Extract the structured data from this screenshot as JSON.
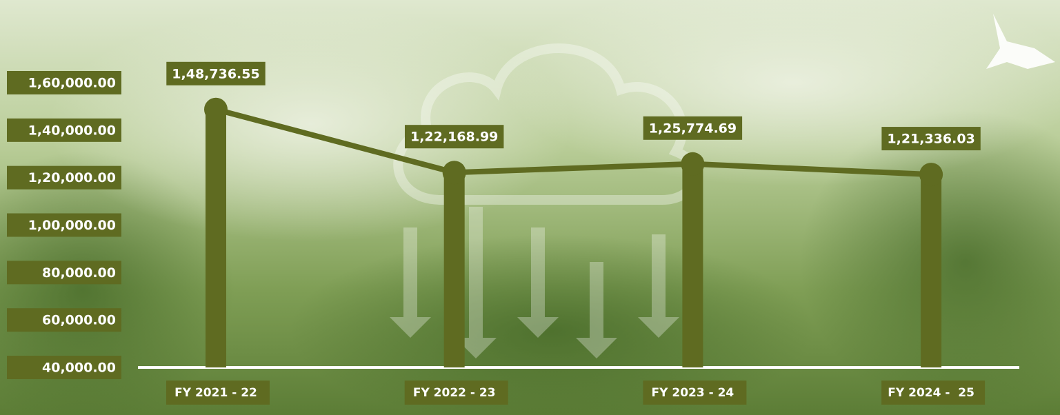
{
  "chart_data": {
    "type": "line",
    "categories": [
      "FY 2021 - 22",
      "FY 2022 - 23",
      "FY 2023 - 24",
      "FY 2024 -  25"
    ],
    "values": [
      148736.55,
      122168.99,
      125774.69,
      121336.03
    ],
    "value_labels": [
      "1,48,736.55",
      "1,22,168.99",
      "1,25,774.69",
      "1,21,336.03"
    ],
    "color": "#5f6b21",
    "ylim": [
      40000,
      160000
    ],
    "yticks": [
      {
        "value": 40000,
        "label": "40,000.00"
      },
      {
        "value": 60000,
        "label": "60,000.00"
      },
      {
        "value": 80000,
        "label": "80,000.00"
      },
      {
        "value": 100000,
        "label": "1,00,000.00"
      },
      {
        "value": 120000,
        "label": "1,20,000.00"
      },
      {
        "value": 140000,
        "label": "1,40,000.00"
      },
      {
        "value": 160000,
        "label": "1,60,000.00"
      }
    ]
  }
}
